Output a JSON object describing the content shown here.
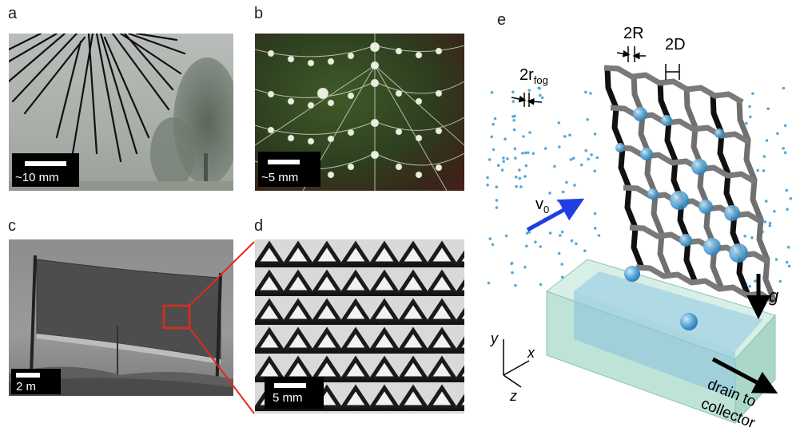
{
  "panels": {
    "a": {
      "letter": "a",
      "scale_label": "~10 mm"
    },
    "b": {
      "letter": "b",
      "scale_label": "~5 mm"
    },
    "c": {
      "letter": "c",
      "scale_label": "2 m"
    },
    "d": {
      "letter": "d",
      "scale_label": "5 mm"
    },
    "e": {
      "letter": "e"
    }
  },
  "schematic": {
    "label_2R": "2R",
    "label_2D": "2D",
    "label_2rfog_main": "2r",
    "label_2rfog_sub": "fog",
    "label_v0_main": "v",
    "label_v0_sub": "0",
    "label_g": "g",
    "axis_y": "y",
    "axis_x": "x",
    "axis_z": "z",
    "drain_line1": "drain to",
    "drain_line2": "collector"
  },
  "colors": {
    "droplet": "#5aa8d8",
    "arrow_v0": "#1f3fe0",
    "highlight": "#e02a1c",
    "trough": "#bfe3d6",
    "mesh_wire": "#6f6f6f"
  }
}
